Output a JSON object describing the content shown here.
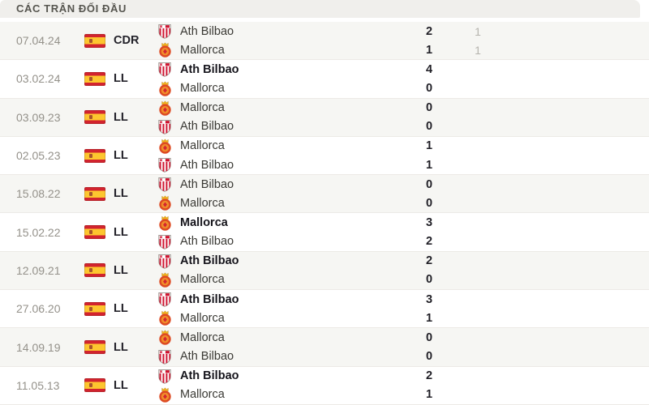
{
  "header": {
    "title": "CÁC TRẬN ĐỐI ĐẦU"
  },
  "colors": {
    "header_bg": "#f0efec",
    "header_text": "#56554f",
    "row_alt_bg": "#f6f6f3",
    "separator": "#eceae6",
    "date_text": "#94918a",
    "team_text": "#3a3934",
    "winner_text": "#16151c",
    "score_text": "#201f26",
    "score_secondary_text": "#b5b3ad",
    "flag_red": "#d2232e",
    "flag_yellow": "#fdc62f",
    "ath_bilbao_red": "#cf1430",
    "mallorca_orange": "#e8542c"
  },
  "matches": [
    {
      "date": "07.04.24",
      "competition": "CDR",
      "flag_icon": "spain-flag-icon",
      "teams": [
        {
          "name": "Ath Bilbao",
          "crest_icon": "ath-bilbao-crest-icon",
          "score": "2",
          "score_secondary": "1",
          "winner_bold": false
        },
        {
          "name": "Mallorca",
          "crest_icon": "mallorca-crest-icon",
          "score": "1",
          "score_secondary": "1",
          "winner_bold": false
        }
      ]
    },
    {
      "date": "03.02.24",
      "competition": "LL",
      "flag_icon": "spain-flag-icon",
      "teams": [
        {
          "name": "Ath Bilbao",
          "crest_icon": "ath-bilbao-crest-icon",
          "score": "4",
          "score_secondary": "",
          "winner_bold": true
        },
        {
          "name": "Mallorca",
          "crest_icon": "mallorca-crest-icon",
          "score": "0",
          "score_secondary": "",
          "winner_bold": false
        }
      ]
    },
    {
      "date": "03.09.23",
      "competition": "LL",
      "flag_icon": "spain-flag-icon",
      "teams": [
        {
          "name": "Mallorca",
          "crest_icon": "mallorca-crest-icon",
          "score": "0",
          "score_secondary": "",
          "winner_bold": false
        },
        {
          "name": "Ath Bilbao",
          "crest_icon": "ath-bilbao-crest-icon",
          "score": "0",
          "score_secondary": "",
          "winner_bold": false
        }
      ]
    },
    {
      "date": "02.05.23",
      "competition": "LL",
      "flag_icon": "spain-flag-icon",
      "teams": [
        {
          "name": "Mallorca",
          "crest_icon": "mallorca-crest-icon",
          "score": "1",
          "score_secondary": "",
          "winner_bold": false
        },
        {
          "name": "Ath Bilbao",
          "crest_icon": "ath-bilbao-crest-icon",
          "score": "1",
          "score_secondary": "",
          "winner_bold": false
        }
      ]
    },
    {
      "date": "15.08.22",
      "competition": "LL",
      "flag_icon": "spain-flag-icon",
      "teams": [
        {
          "name": "Ath Bilbao",
          "crest_icon": "ath-bilbao-crest-icon",
          "score": "0",
          "score_secondary": "",
          "winner_bold": false
        },
        {
          "name": "Mallorca",
          "crest_icon": "mallorca-crest-icon",
          "score": "0",
          "score_secondary": "",
          "winner_bold": false
        }
      ]
    },
    {
      "date": "15.02.22",
      "competition": "LL",
      "flag_icon": "spain-flag-icon",
      "teams": [
        {
          "name": "Mallorca",
          "crest_icon": "mallorca-crest-icon",
          "score": "3",
          "score_secondary": "",
          "winner_bold": true
        },
        {
          "name": "Ath Bilbao",
          "crest_icon": "ath-bilbao-crest-icon",
          "score": "2",
          "score_secondary": "",
          "winner_bold": false
        }
      ]
    },
    {
      "date": "12.09.21",
      "competition": "LL",
      "flag_icon": "spain-flag-icon",
      "teams": [
        {
          "name": "Ath Bilbao",
          "crest_icon": "ath-bilbao-crest-icon",
          "score": "2",
          "score_secondary": "",
          "winner_bold": true
        },
        {
          "name": "Mallorca",
          "crest_icon": "mallorca-crest-icon",
          "score": "0",
          "score_secondary": "",
          "winner_bold": false
        }
      ]
    },
    {
      "date": "27.06.20",
      "competition": "LL",
      "flag_icon": "spain-flag-icon",
      "teams": [
        {
          "name": "Ath Bilbao",
          "crest_icon": "ath-bilbao-crest-icon",
          "score": "3",
          "score_secondary": "",
          "winner_bold": true
        },
        {
          "name": "Mallorca",
          "crest_icon": "mallorca-crest-icon",
          "score": "1",
          "score_secondary": "",
          "winner_bold": false
        }
      ]
    },
    {
      "date": "14.09.19",
      "competition": "LL",
      "flag_icon": "spain-flag-icon",
      "teams": [
        {
          "name": "Mallorca",
          "crest_icon": "mallorca-crest-icon",
          "score": "0",
          "score_secondary": "",
          "winner_bold": false
        },
        {
          "name": "Ath Bilbao",
          "crest_icon": "ath-bilbao-crest-icon",
          "score": "0",
          "score_secondary": "",
          "winner_bold": false
        }
      ]
    },
    {
      "date": "11.05.13",
      "competition": "LL",
      "flag_icon": "spain-flag-icon",
      "teams": [
        {
          "name": "Ath Bilbao",
          "crest_icon": "ath-bilbao-crest-icon",
          "score": "2",
          "score_secondary": "",
          "winner_bold": true
        },
        {
          "name": "Mallorca",
          "crest_icon": "mallorca-crest-icon",
          "score": "1",
          "score_secondary": "",
          "winner_bold": false
        }
      ]
    }
  ]
}
